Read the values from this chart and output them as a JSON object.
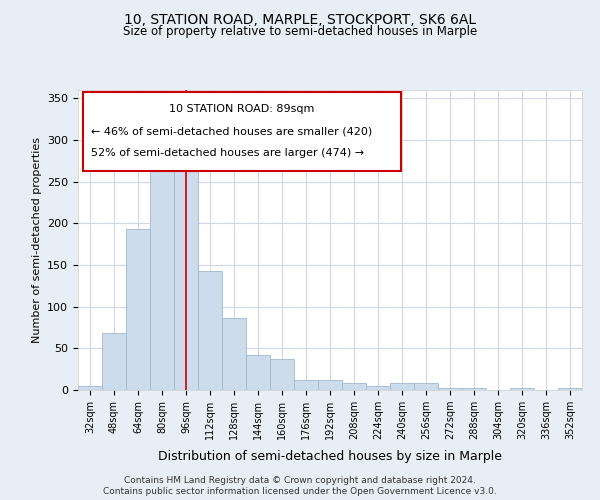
{
  "title": "10, STATION ROAD, MARPLE, STOCKPORT, SK6 6AL",
  "subtitle": "Size of property relative to semi-detached houses in Marple",
  "xlabel": "Distribution of semi-detached houses by size in Marple",
  "ylabel": "Number of semi-detached properties",
  "categories": [
    "32sqm",
    "48sqm",
    "64sqm",
    "80sqm",
    "96sqm",
    "112sqm",
    "128sqm",
    "144sqm",
    "160sqm",
    "176sqm",
    "192sqm",
    "208sqm",
    "224sqm",
    "240sqm",
    "256sqm",
    "272sqm",
    "288sqm",
    "304sqm",
    "320sqm",
    "336sqm",
    "352sqm"
  ],
  "values": [
    5,
    68,
    193,
    285,
    285,
    143,
    87,
    42,
    37,
    12,
    12,
    9,
    5,
    9,
    9,
    3,
    2,
    0,
    2,
    0,
    2
  ],
  "bar_color": "#ccdcec",
  "bar_edge_color": "#a0b8cc",
  "annotation_box_color": "#ffffff",
  "annotation_box_edge": "#cc0000",
  "annotation_text_line1": "10 STATION ROAD: 89sqm",
  "annotation_text_line2": "← 46% of semi-detached houses are smaller (420)",
  "annotation_text_line3": "52% of semi-detached houses are larger (474) →",
  "vline_x": 4.0,
  "vline_color": "#cc0000",
  "ylim": [
    0,
    360
  ],
  "yticks": [
    0,
    50,
    100,
    150,
    200,
    250,
    300,
    350
  ],
  "background_color": "#ffffff",
  "plot_background_color": "#ffffff",
  "figure_background_color": "#e8eef5",
  "grid_color": "#d0d8e8",
  "footer_line1": "Contains HM Land Registry data © Crown copyright and database right 2024.",
  "footer_line2": "Contains public sector information licensed under the Open Government Licence v3.0."
}
